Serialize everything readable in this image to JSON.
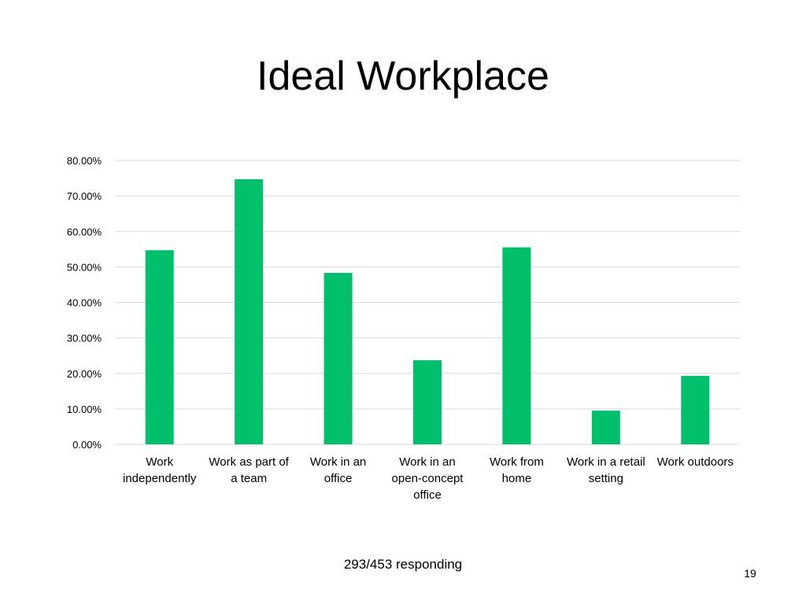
{
  "slide": {
    "title": "Ideal Workplace",
    "footer": "293/453 responding",
    "page_number": "19"
  },
  "colors": {
    "bar": "#00c06b",
    "grid": "#d9d9d9",
    "axis_text": "#000000"
  },
  "chart_data": {
    "type": "bar",
    "title": "",
    "xlabel": "",
    "ylabel": "",
    "ylim": [
      0,
      0.8
    ],
    "ytick_values": [
      0,
      0.1,
      0.2,
      0.3,
      0.4,
      0.5,
      0.6,
      0.7,
      0.8
    ],
    "ytick_labels": [
      "0.00%",
      "10.00%",
      "20.00%",
      "30.00%",
      "40.00%",
      "50.00%",
      "60.00%",
      "70.00%",
      "80.00%"
    ],
    "grid": true,
    "legend": "none",
    "categories": [
      [
        "Work",
        "independently"
      ],
      [
        "Work as part of",
        "a team"
      ],
      [
        "Work in an",
        "office"
      ],
      [
        "Work in an",
        "open-concept",
        "office"
      ],
      [
        "Work from",
        "home"
      ],
      [
        "Work in a retail",
        "setting"
      ],
      [
        "Work outdoors"
      ]
    ],
    "values": [
      0.547,
      0.747,
      0.483,
      0.237,
      0.555,
      0.095,
      0.193
    ]
  }
}
